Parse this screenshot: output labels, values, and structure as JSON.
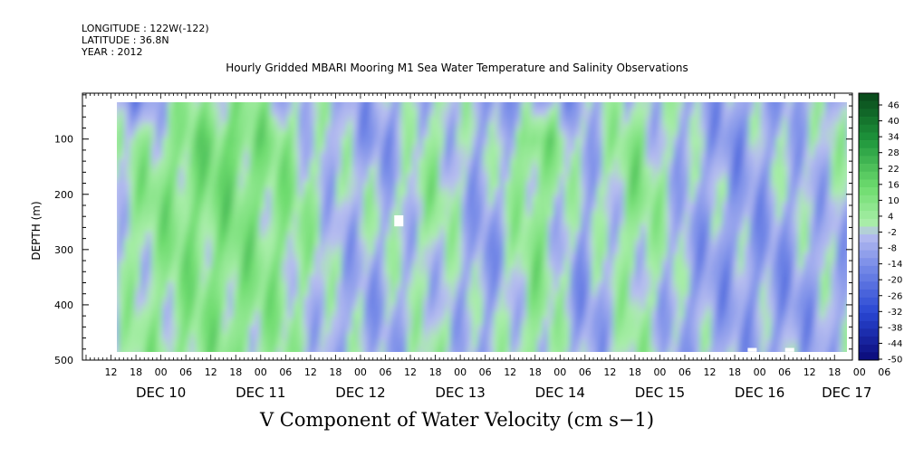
{
  "header": {
    "longitude": "LONGITUDE : 122W(-122)",
    "latitude": "LATITUDE : 36.8N",
    "year": "YEAR : 2012"
  },
  "chart_data": {
    "type": "heatmap",
    "title": "Hourly Gridded MBARI Mooring M1 Sea Water Temperature and Salinity Observations",
    "caption": "V Component of Water Velocity (cm s−1)",
    "ylabel": "DEPTH (m)",
    "y_axis": {
      "reversed": true,
      "range": [
        0,
        500
      ],
      "ticks": [
        100,
        200,
        300,
        400,
        500
      ],
      "tick_labels": [
        "100",
        "200",
        "300",
        "400",
        "500"
      ]
    },
    "x_axis": {
      "range_hours": [
        0,
        180
      ],
      "hour_labels": [
        "12",
        "18",
        "00",
        "06",
        "12",
        "18",
        "00",
        "06",
        "12",
        "18",
        "00",
        "06",
        "12",
        "18",
        "00",
        "06",
        "12",
        "18",
        "00",
        "06",
        "12",
        "18",
        "00",
        "06",
        "12",
        "18",
        "00",
        "06",
        "12",
        "18",
        "00",
        "06"
      ],
      "date_labels": [
        "DEC 10",
        "DEC 11",
        "DEC 12",
        "DEC 13",
        "DEC 14",
        "DEC 15",
        "DEC 16",
        "DEC 17"
      ]
    },
    "data_depth_range": [
      25,
      485
    ],
    "colorbar": {
      "labels": [
        "46",
        "40",
        "34",
        "28",
        "22",
        "16",
        "10",
        "4",
        "-2",
        "-8",
        "-14",
        "-20",
        "-26",
        "-32",
        "-38",
        "-44",
        "-50"
      ],
      "min": -50,
      "max": 52,
      "step": 3
    },
    "field_samples": {
      "description_columns": "velocity (cm/s) columns sampled along time axis, rows by depth band",
      "depths": [
        30,
        100,
        200,
        300,
        400,
        480
      ],
      "hours": [
        0,
        12,
        24,
        36,
        48,
        60,
        72,
        84,
        96,
        108,
        120,
        132,
        144,
        156,
        168,
        180
      ],
      "values": [
        [
          -14,
          -12,
          4,
          8,
          -2,
          -4,
          -8,
          2,
          -6,
          -10,
          -6,
          2,
          -4,
          -8,
          -6,
          -4
        ],
        [
          -8,
          2,
          10,
          16,
          6,
          -4,
          -10,
          4,
          -8,
          14,
          -4,
          8,
          -6,
          -10,
          -4,
          0
        ],
        [
          -4,
          6,
          12,
          12,
          8,
          -2,
          -2,
          6,
          -8,
          10,
          -6,
          10,
          -4,
          -8,
          -6,
          -2
        ],
        [
          -6,
          4,
          10,
          10,
          8,
          -4,
          -4,
          2,
          -10,
          8,
          -8,
          6,
          -6,
          -10,
          -8,
          -4
        ],
        [
          -8,
          2,
          8,
          10,
          6,
          -6,
          -6,
          0,
          -8,
          8,
          -10,
          4,
          -8,
          -8,
          -10,
          -6
        ],
        [
          -6,
          4,
          8,
          8,
          4,
          -4,
          -6,
          2,
          -6,
          6,
          -8,
          4,
          -6,
          -6,
          -8,
          -4
        ]
      ]
    },
    "gaps": [
      {
        "hour": 75,
        "depth_from": 238,
        "depth_to": 258
      },
      {
        "hour": 160,
        "depth_from": 478,
        "depth_to": 485
      },
      {
        "hour": 169,
        "depth_from": 478,
        "depth_to": 485
      }
    ]
  },
  "colors": {
    "negative_strong": "#0a0a7a",
    "negative": "#4a6ad8",
    "near_zero": "#b8bef0",
    "positive": "#7ee07e",
    "positive_strong": "#0a4a1a"
  }
}
